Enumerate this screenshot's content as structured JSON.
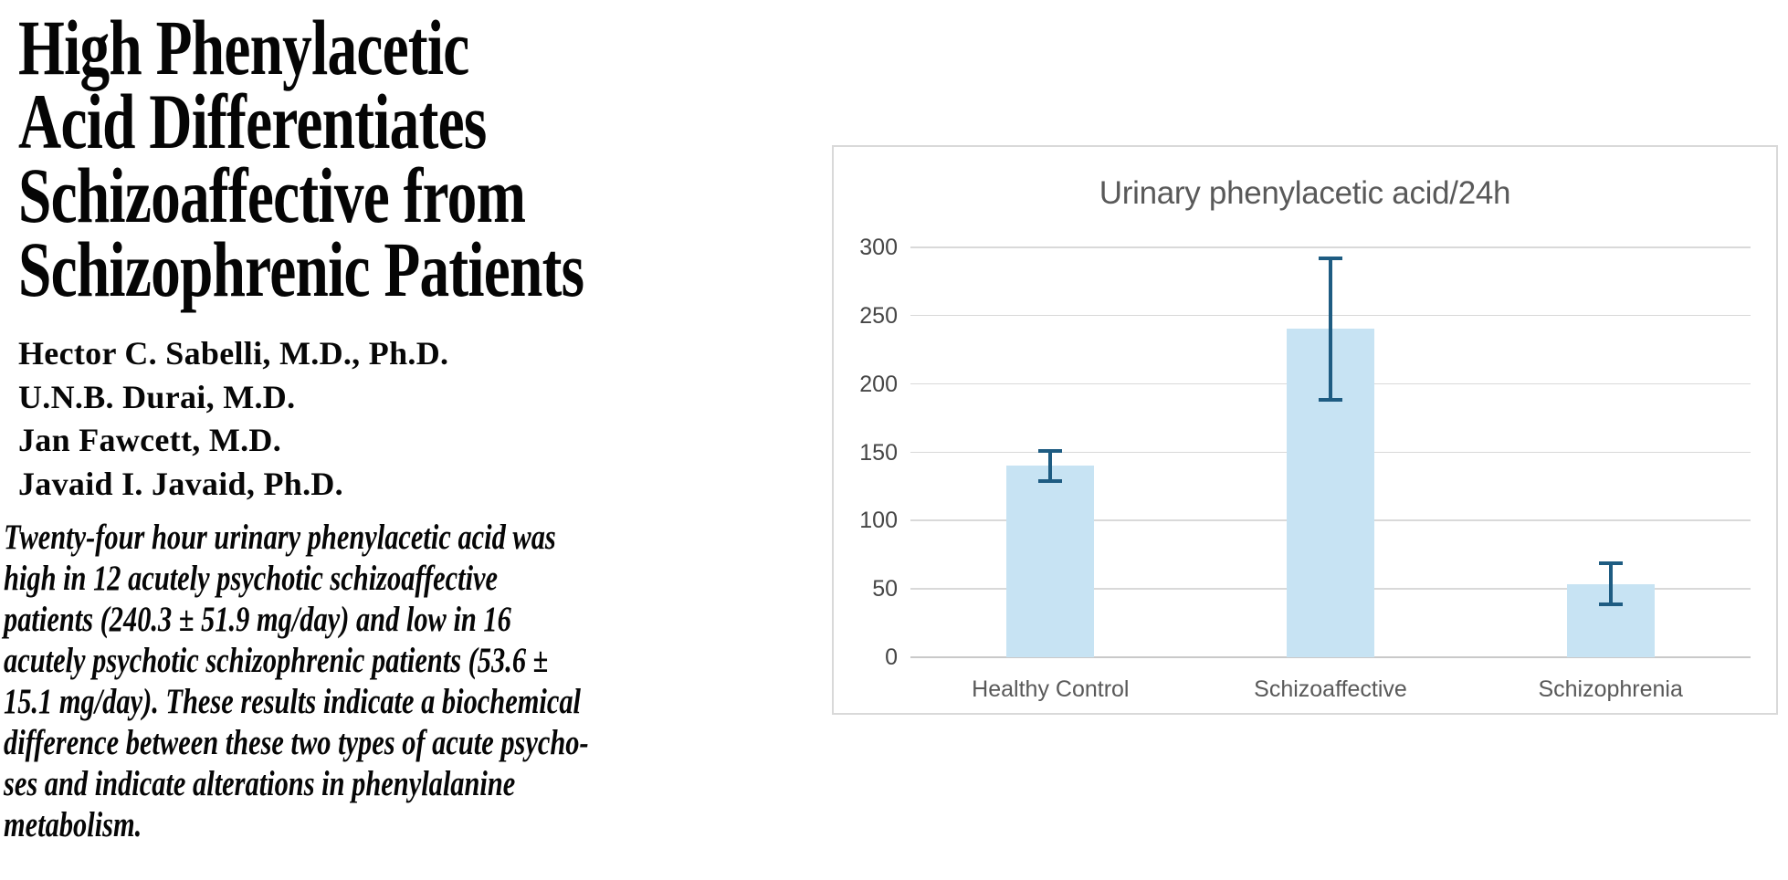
{
  "paper": {
    "title_lines": [
      "High Phenylacetic",
      "Acid Differentiates",
      "Schizoaffective from",
      "Schizophrenic Patients"
    ],
    "authors": [
      "Hector C. Sabelli, M.D., Ph.D.",
      "U.N.B. Durai, M.D.",
      "Jan Fawcett, M.D.",
      "Javaid I. Javaid, Ph.D."
    ],
    "abstract_lines": [
      "Twenty-four hour urinary phenylacetic acid was",
      "high in 12 acutely psychotic schizoaffective",
      "patients (240.3 ± 51.9 mg/day) and low in 16",
      "acutely psychotic schizophrenic patients (53.6 ±",
      "15.1 mg/day). These results indicate a biochemical",
      "difference between these two types of acute psycho-",
      "ses and indicate alterations in phenylalanine",
      "metabolism."
    ]
  },
  "chart_data": {
    "type": "bar",
    "title": "Urinary phenylacetic acid/24h",
    "categories": [
      "Healthy Control",
      "Schizoaffective",
      "Schizophrenia"
    ],
    "values": [
      140,
      240.3,
      53.6
    ],
    "errors": [
      11,
      51.9,
      15.1
    ],
    "y_ticks": [
      0,
      50,
      100,
      150,
      200,
      250,
      300
    ],
    "ylim": [
      0,
      300
    ],
    "xlabel": "",
    "ylabel": "",
    "grid": true,
    "legend": false,
    "colors": {
      "bar": "#C7E3F3",
      "error": "#1E5C82",
      "grid": "#D9D9D9",
      "axis": "#C9C9C9",
      "border": "#D9D9D9",
      "text": "#595959",
      "tick": "#464646"
    }
  }
}
